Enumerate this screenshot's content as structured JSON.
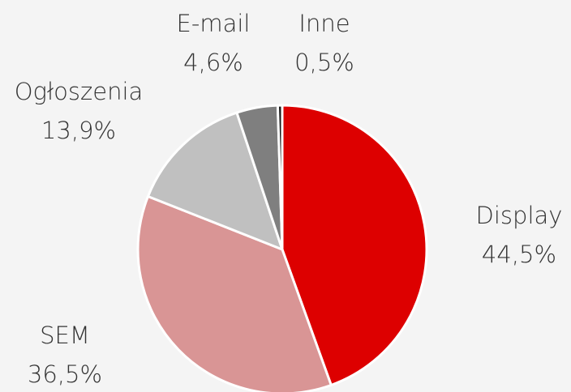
{
  "chart_data": {
    "type": "pie",
    "categories": [
      "Display",
      "SEM",
      "Ogłoszenia",
      "E-mail",
      "Inne"
    ],
    "values": [
      44.5,
      36.5,
      13.9,
      4.6,
      0.5
    ],
    "value_labels": [
      "44,5%",
      "36,5%",
      "13,9%",
      "4,6%",
      "0,5%"
    ],
    "colors": [
      "#dd0000",
      "#d99595",
      "#c0c0c0",
      "#7f7f7f",
      "#1a1a1a"
    ]
  }
}
